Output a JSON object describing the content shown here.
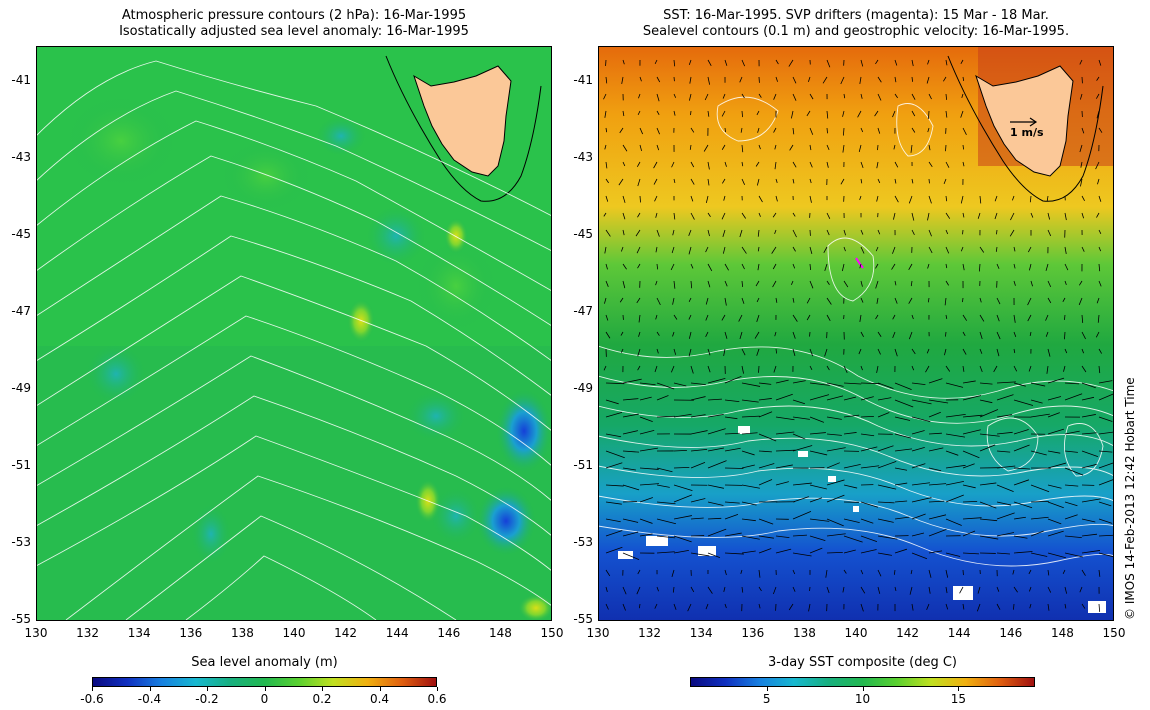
{
  "left": {
    "title_line1": "Atmospheric pressure contours (2 hPa): 16-Mar-1995",
    "title_line2": "Isostatically adjusted sea level anomaly: 16-Mar-1995",
    "colorbar_label": "Sea level anomaly (m)",
    "colorbar_ticks": [
      "-0.6",
      "-0.4",
      "-0.2",
      "0",
      "0.2",
      "0.4",
      "0.6"
    ],
    "colorbar_range": [
      -0.6,
      0.6
    ],
    "colors": {
      "background": "#22b850",
      "low": "#1565d8",
      "mid": "#2fd14a",
      "high": "#d0e020"
    }
  },
  "right": {
    "title_line1": "SST: 16-Mar-1995. SVP drifters (magenta): 15 Mar - 18 Mar.",
    "title_line2": "Sealevel contours (0.1 m) and geostrophic velocity: 16-Mar-1995.",
    "colorbar_label": "3-day SST composite (deg C)",
    "colorbar_ticks": [
      "5",
      "10",
      "15"
    ],
    "colorbar_tick_values": [
      5,
      10,
      15
    ],
    "colorbar_range": [
      1,
      19
    ],
    "velocity_scale_label": "1 m/s",
    "colors": {
      "warm": "#e9780c",
      "mid": "#1cab3a",
      "cold": "#1448d0",
      "land": "#fbc898"
    }
  },
  "axes": {
    "y_ticks": [
      "-41",
      "-43",
      "-45",
      "-47",
      "-49",
      "-51",
      "-53",
      "-55"
    ],
    "y_values": [
      -41,
      -43,
      -45,
      -47,
      -49,
      -51,
      -53,
      -55
    ],
    "x_ticks": [
      "130",
      "132",
      "134",
      "136",
      "138",
      "140",
      "142",
      "144",
      "146",
      "148",
      "150"
    ],
    "x_values": [
      130,
      132,
      134,
      136,
      138,
      140,
      142,
      144,
      146,
      148,
      150
    ],
    "lon_range": [
      130,
      150
    ],
    "lat_range": [
      -40.1,
      -55
    ]
  },
  "watermark": "© IMOS 14-Feb-2013 12:42 Hobart Time"
}
